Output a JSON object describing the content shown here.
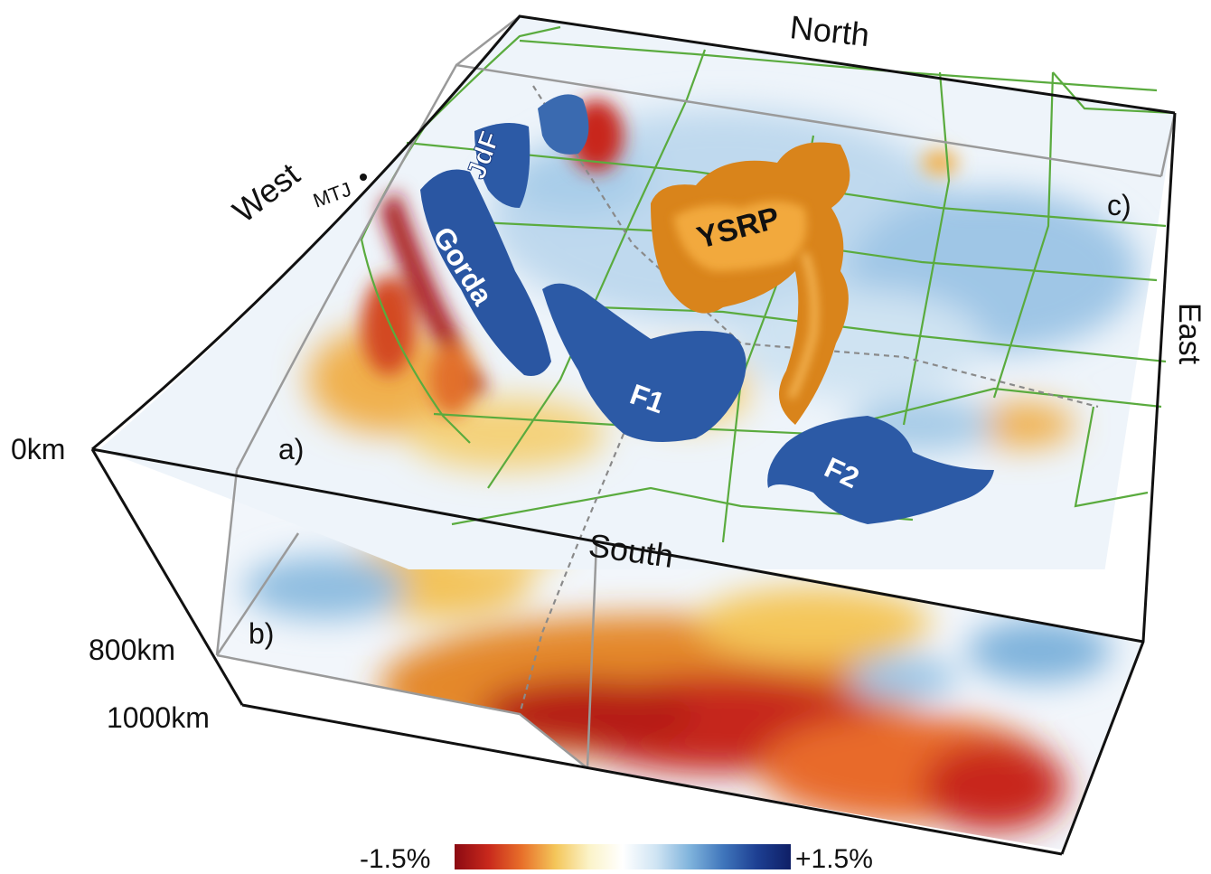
{
  "directions": {
    "north": "North",
    "south": "South",
    "west": "West",
    "east": "East"
  },
  "depths": {
    "top": "0km",
    "mid": "800km",
    "bottom": "1000km"
  },
  "panels": {
    "a": "a)",
    "b": "b)",
    "c": "c)"
  },
  "features": {
    "jdf": "JdF",
    "gorda": "Gorda",
    "f1": "F1",
    "f2": "F2",
    "ysrp": "YSRP",
    "mtj": "MTJ"
  },
  "colorbar": {
    "min_label": "-1.5%",
    "max_label": "+1.5%",
    "stops": [
      "#8b0a12",
      "#c8281c",
      "#e8702a",
      "#f4c65a",
      "#fbf3c8",
      "#ffffff",
      "#cfe4f3",
      "#7fb3dc",
      "#3f75bb",
      "#1d3f92",
      "#0f1f66"
    ]
  },
  "colors": {
    "slow": "#c8281c",
    "fast": "#2f5ea8",
    "plume": "#e08a1e",
    "borders": "#5aab3e",
    "frame": "#111111"
  }
}
